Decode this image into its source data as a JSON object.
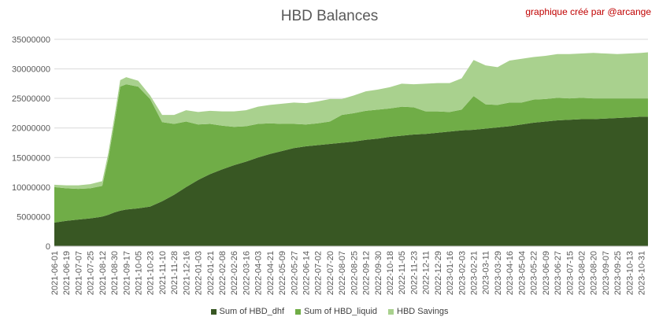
{
  "chart_data": {
    "type": "area",
    "title": "HBD Balances",
    "credit": "graphique créé par @arcange",
    "xlabel": "",
    "ylabel": "",
    "ylim": [
      0,
      35000000
    ],
    "y_ticks": [
      0,
      5000000,
      10000000,
      15000000,
      20000000,
      25000000,
      30000000,
      35000000
    ],
    "grid": true,
    "legend_position": "bottom",
    "x_tick_labels": [
      "2021-06-01",
      "2021-06-19",
      "2021-07-07",
      "2021-07-25",
      "2021-08-12",
      "2021-08-30",
      "2021-09-17",
      "2021-10-05",
      "2021-10-23",
      "2021-11-10",
      "2021-11-28",
      "2021-12-16",
      "2022-01-03",
      "2022-01-21",
      "2022-02-08",
      "2022-02-26",
      "2022-03-16",
      "2022-04-03",
      "2022-04-21",
      "2022-05-09",
      "2022-05-27",
      "2022-06-14",
      "2022-07-02",
      "2022-07-20",
      "2022-08-07",
      "2022-08-25",
      "2022-09-12",
      "2022-09-30",
      "2022-10-18",
      "2022-11-05",
      "2022-11-23",
      "2022-12-11",
      "2022-12-29",
      "2023-01-16",
      "2023-02-03",
      "2023-02-21",
      "2023-03-11",
      "2023-03-29",
      "2023-04-16",
      "2023-05-04",
      "2023-05-22",
      "2023-06-09",
      "2023-06-27",
      "2023-07-15",
      "2023-08-02",
      "2023-08-20",
      "2023-09-07",
      "2023-09-25",
      "2023-10-13",
      "2023-10-31"
    ],
    "x": [
      "2021-06-01",
      "2021-06-19",
      "2021-07-07",
      "2021-07-25",
      "2021-08-12",
      "2021-08-21",
      "2021-08-30",
      "2021-09-08",
      "2021-09-17",
      "2021-10-05",
      "2021-10-23",
      "2021-11-10",
      "2021-11-28",
      "2021-12-16",
      "2022-01-03",
      "2022-01-21",
      "2022-02-08",
      "2022-02-26",
      "2022-03-16",
      "2022-04-03",
      "2022-04-21",
      "2022-05-09",
      "2022-05-27",
      "2022-06-14",
      "2022-07-02",
      "2022-07-20",
      "2022-08-07",
      "2022-08-25",
      "2022-09-12",
      "2022-09-30",
      "2022-10-18",
      "2022-11-05",
      "2022-11-23",
      "2022-12-11",
      "2022-12-29",
      "2023-01-16",
      "2023-02-03",
      "2023-02-21",
      "2023-03-11",
      "2023-03-29",
      "2023-04-16",
      "2023-05-04",
      "2023-05-22",
      "2023-06-09",
      "2023-06-27",
      "2023-07-15",
      "2023-08-02",
      "2023-08-20",
      "2023-09-07",
      "2023-09-25",
      "2023-10-13",
      "2023-10-31",
      "2023-11-10"
    ],
    "series": [
      {
        "name": "Sum of HBD_dhf",
        "color": "#385723",
        "values": [
          4000000,
          4300000,
          4500000,
          4700000,
          5000000,
          5300000,
          5700000,
          6000000,
          6200000,
          6400000,
          6700000,
          7600000,
          8700000,
          10000000,
          11200000,
          12200000,
          13000000,
          13700000,
          14300000,
          15000000,
          15600000,
          16100000,
          16600000,
          16900000,
          17100000,
          17300000,
          17500000,
          17700000,
          18000000,
          18200000,
          18500000,
          18700000,
          18900000,
          19000000,
          19200000,
          19400000,
          19600000,
          19700000,
          19900000,
          20100000,
          20300000,
          20600000,
          20900000,
          21100000,
          21300000,
          21400000,
          21500000,
          21500000,
          21600000,
          21700000,
          21800000,
          21900000,
          21900000
        ]
      },
      {
        "name": "Sum of HBD_liquid",
        "color": "#70ad47",
        "values": [
          6000000,
          5500000,
          5200000,
          5100000,
          5200000,
          9500000,
          15000000,
          21000000,
          21200000,
          20600000,
          18200000,
          13400000,
          12000000,
          11100000,
          9400000,
          8500000,
          7400000,
          6500000,
          6000000,
          5700000,
          5200000,
          4600000,
          4100000,
          3700000,
          3700000,
          3800000,
          4700000,
          4800000,
          4900000,
          4900000,
          4800000,
          4900000,
          4600000,
          3800000,
          3600000,
          3300000,
          3500000,
          5700000,
          4100000,
          3800000,
          4000000,
          3700000,
          3900000,
          3800000,
          3800000,
          3600000,
          3600000,
          3500000,
          3400000,
          3300000,
          3200000,
          3100000,
          3100000
        ]
      },
      {
        "name": "HBD Savings",
        "color": "#a9d18e",
        "values": [
          400000,
          500000,
          600000,
          700000,
          800000,
          900000,
          1000000,
          1100000,
          1200000,
          1000000,
          600000,
          1200000,
          1500000,
          1900000,
          2100000,
          2200000,
          2400000,
          2600000,
          2700000,
          2900000,
          3100000,
          3400000,
          3600000,
          3600000,
          3700000,
          3800000,
          2700000,
          3000000,
          3300000,
          3400000,
          3600000,
          3900000,
          3900000,
          4700000,
          4800000,
          4900000,
          5300000,
          6100000,
          6600000,
          6400000,
          7100000,
          7400000,
          7200000,
          7300000,
          7400000,
          7500000,
          7500000,
          7700000,
          7600000,
          7500000,
          7600000,
          7700000,
          7800000
        ]
      }
    ]
  }
}
